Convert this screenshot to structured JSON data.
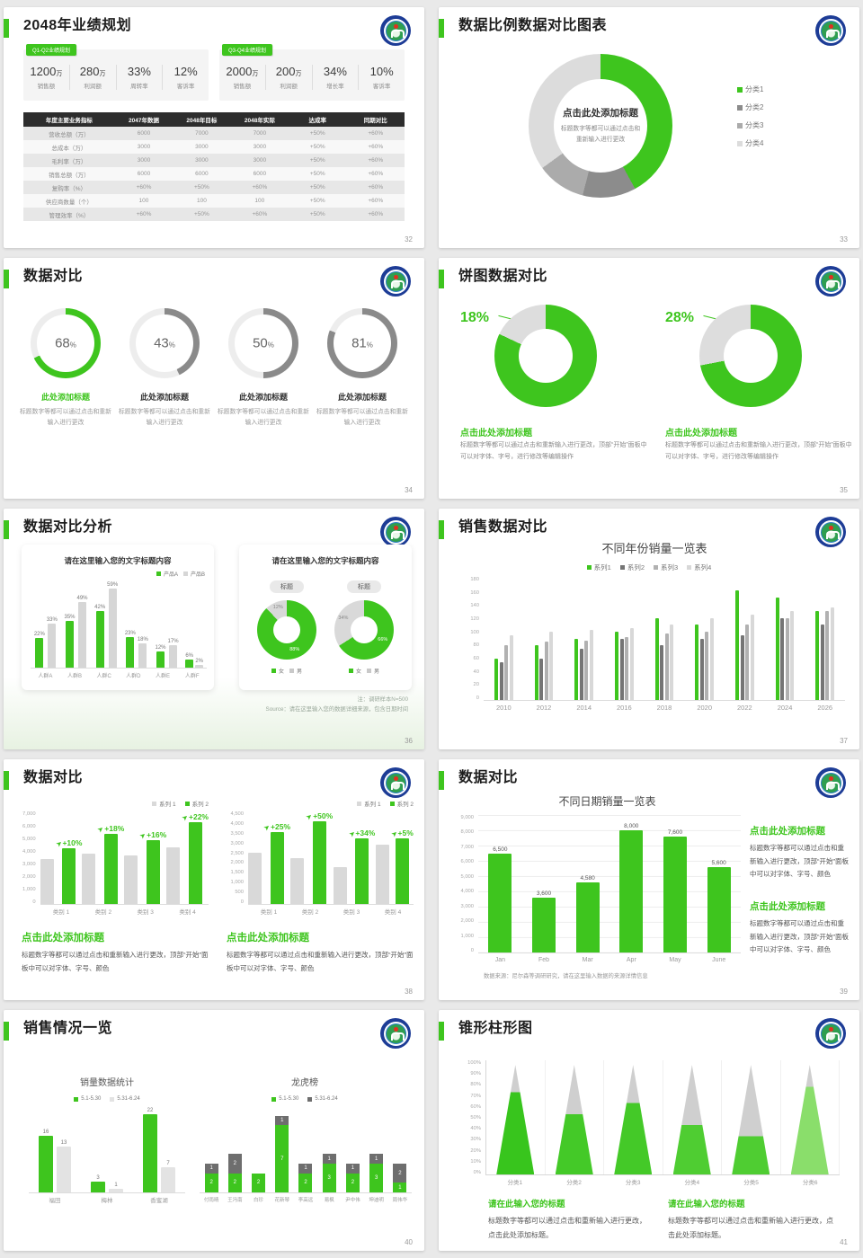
{
  "accent_color": "#3EC51E",
  "slides": {
    "s32": {
      "title": "2048年业绩规划",
      "page": "32",
      "panels": [
        {
          "badge": "Q1-Q2业绩规划",
          "stats": [
            {
              "v": "1200",
              "u": "万",
              "l": "销售额"
            },
            {
              "v": "280",
              "u": "万",
              "l": "利润额"
            },
            {
              "v": "33%",
              "u": "",
              "l": "周转率"
            },
            {
              "v": "12%",
              "u": "",
              "l": "客诉率"
            }
          ]
        },
        {
          "badge": "Q3-Q4业绩规划",
          "stats": [
            {
              "v": "2000",
              "u": "万",
              "l": "销售额"
            },
            {
              "v": "200",
              "u": "万",
              "l": "利润额"
            },
            {
              "v": "34%",
              "u": "",
              "l": "增长率"
            },
            {
              "v": "10%",
              "u": "",
              "l": "客诉率"
            }
          ]
        }
      ],
      "table": {
        "headers": [
          "年度主要业务指标",
          "2047年数据",
          "2048年目标",
          "2048年实际",
          "达成率",
          "同期对比"
        ],
        "rows": [
          [
            "营收总额（万）",
            "6000",
            "7000",
            "7000",
            "+50%",
            "+60%"
          ],
          [
            "总成本（万）",
            "3000",
            "3000",
            "3000",
            "+50%",
            "+60%"
          ],
          [
            "毛利率（万）",
            "3000",
            "3000",
            "3000",
            "+50%",
            "+60%"
          ],
          [
            "销售总额（万）",
            "6000",
            "6000",
            "6000",
            "+50%",
            "+60%"
          ],
          [
            "复购率（%）",
            "+60%",
            "+50%",
            "+60%",
            "+50%",
            "+60%"
          ],
          [
            "供应商数量（个）",
            "100",
            "100",
            "100",
            "+50%",
            "+60%"
          ],
          [
            "管理效率（%）",
            "+60%",
            "+50%",
            "+60%",
            "+50%",
            "+60%"
          ]
        ]
      }
    },
    "s33": {
      "title": "数据比例数据对比图表",
      "page": "33",
      "center": {
        "heading": "点击此处添加标题",
        "sub": "标题数字等都可以通过点击和重新输入进行更改"
      },
      "donut": {
        "type": "pie",
        "segs": [
          {
            "label": "分类1",
            "pct": 42,
            "color": "#3EC51E"
          },
          {
            "label": "分类2",
            "pct": 12,
            "color": "#8c8c8c"
          },
          {
            "label": "分类3",
            "pct": 11,
            "color": "#ababab"
          },
          {
            "label": "分类4",
            "pct": 35,
            "color": "#dcdcdc"
          }
        ]
      }
    },
    "s34": {
      "title": "数据对比",
      "page": "34",
      "items": [
        {
          "pct": 68,
          "color": "#3EC51E",
          "hcolor": "#3EC51E",
          "heading": "此处添加标题",
          "body": "标题数字等都可以通过点击和重新输入进行更改"
        },
        {
          "pct": 43,
          "color": "#8a8a8a",
          "hcolor": "#333333",
          "heading": "此处添加标题",
          "body": "标题数字等都可以通过点击和重新输入进行更改"
        },
        {
          "pct": 50,
          "color": "#8a8a8a",
          "hcolor": "#333333",
          "heading": "此处添加标题",
          "body": "标题数字等都可以通过点击和重新输入进行更改"
        },
        {
          "pct": 81,
          "color": "#8a8a8a",
          "hcolor": "#333333",
          "heading": "此处添加标题",
          "body": "标题数字等都可以通过点击和重新输入进行更改"
        }
      ]
    },
    "s35": {
      "title": "饼图数据对比",
      "page": "35",
      "items": [
        {
          "pct_label": "18%",
          "green": 82,
          "gray": 18,
          "heading": "点击此处添加标题",
          "body": "标题数字等都可以通过点击和重新输入进行更改，顶部“开始”面板中可以对字体、字号，进行修改等编辑操作"
        },
        {
          "pct_label": "28%",
          "green": 72,
          "gray": 28,
          "heading": "点击此处添加标题",
          "body": "标题数字等都可以通过点击和重新输入进行更改，顶部“开始”面板中可以对字体、字号，进行修改等编辑操作"
        }
      ]
    },
    "s36": {
      "title": "数据对比分析",
      "page": "36",
      "left": {
        "panel_title": "请在这里输入您的文字标题内容",
        "type": "bar",
        "legend": [
          {
            "label": "产品A",
            "color": "#3EC51E"
          },
          {
            "label": "产品B",
            "color": "#d6d6d6"
          }
        ],
        "categories": [
          "人群A",
          "人群B",
          "人群C",
          "人群D",
          "人群E",
          "人群F"
        ],
        "series": [
          {
            "name": "产品A",
            "values": [
              22,
              35,
              42,
              23,
              12,
              6
            ],
            "labels": [
              "22%",
              "35%",
              "42%",
              "23%",
              "12%",
              "6%"
            ]
          },
          {
            "name": "产品B",
            "values": [
              33,
              49,
              59,
              18,
              17,
              2
            ],
            "labels": [
              "33%",
              "49%",
              "59%",
              "18%",
              "17%",
              "2%"
            ]
          }
        ],
        "ymax": 65
      },
      "right": {
        "panel_title": "请在这里输入您的文字标题内容",
        "donuts": [
          {
            "badge": "标题",
            "type": "pie",
            "segs": [
              {
                "label": "88%",
                "pct": 88,
                "color": "#3EC51E",
                "lc": "#ffffff",
                "r": 36
              },
              {
                "label": "12%",
                "pct": 12,
                "color": "#d9d9d9",
                "lc": "#888888",
                "r": 40
              }
            ],
            "legend": [
              {
                "label": "女",
                "color": "#3EC51E"
              },
              {
                "label": "男",
                "color": "#c9c9c9"
              }
            ]
          },
          {
            "badge": "标题",
            "type": "pie",
            "segs": [
              {
                "label": "66%",
                "pct": 66,
                "color": "#3EC51E",
                "lc": "#ffffff",
                "r": 36
              },
              {
                "label": "34%",
                "pct": 34,
                "color": "#d9d9d9",
                "lc": "#888888",
                "r": 40
              }
            ],
            "legend": [
              {
                "label": "女",
                "color": "#3EC51E"
              },
              {
                "label": "男",
                "color": "#c9c9c9"
              }
            ]
          }
        ]
      },
      "note1": "注：调研样本N=500",
      "note2": "Source：请在这里输入您的数据详细来源，包含日期时间"
    },
    "s37": {
      "title": "销售数据对比",
      "page": "37",
      "chart_title": "不同年份销量一览表",
      "type": "bar",
      "legend": [
        {
          "label": "系列1",
          "color": "#3EC51E"
        },
        {
          "label": "系列2",
          "color": "#757575"
        },
        {
          "label": "系列3",
          "color": "#b1b1b1"
        },
        {
          "label": "系列4",
          "color": "#d8d8d8"
        }
      ],
      "yticks": [
        "180",
        "160",
        "140",
        "120",
        "100",
        "80",
        "60",
        "40",
        "20",
        "0"
      ],
      "ymax": 180,
      "categories": [
        "2010",
        "2012",
        "2014",
        "2016",
        "2018",
        "2020",
        "2022",
        "2024",
        "2026"
      ],
      "series": [
        {
          "name": "系列1",
          "values": [
            60,
            80,
            90,
            100,
            120,
            110,
            160,
            150,
            130
          ]
        },
        {
          "name": "系列2",
          "values": [
            55,
            60,
            75,
            90,
            80,
            90,
            95,
            120,
            110
          ]
        },
        {
          "name": "系列3",
          "values": [
            80,
            85,
            87,
            92,
            97,
            100,
            110,
            120,
            130
          ]
        },
        {
          "name": "系列4",
          "values": [
            95,
            100,
            102,
            105,
            110,
            120,
            125,
            130,
            135
          ]
        }
      ]
    },
    "s38": {
      "title": "数据对比",
      "page": "38",
      "charts": [
        {
          "type": "bar",
          "legend": [
            {
              "label": "系列 1",
              "color": "#d9d9d9"
            },
            {
              "label": "系列 2",
              "color": "#3EC51E"
            }
          ],
          "yticks": [
            "7,000",
            "6,000",
            "5,000",
            "4,000",
            "3,000",
            "2,000",
            "1,000",
            "0"
          ],
          "ymax": 7000,
          "categories": [
            "类别 1",
            "类别 2",
            "类别 3",
            "类别 4"
          ],
          "gray": [
            3400,
            3800,
            3650,
            4300
          ],
          "green": [
            4200,
            5300,
            4800,
            6200
          ],
          "labels": [
            "+10%",
            "+18%",
            "+16%",
            "+22%"
          ]
        },
        {
          "type": "bar",
          "legend": [
            {
              "label": "系列 1",
              "color": "#d9d9d9"
            },
            {
              "label": "系列 2",
              "color": "#3EC51E"
            }
          ],
          "yticks": [
            "4,500",
            "4,000",
            "3,500",
            "3,000",
            "2,500",
            "2,000",
            "1,500",
            "1,000",
            "500",
            "0"
          ],
          "ymax": 4500,
          "categories": [
            "类别 1",
            "类别 2",
            "类别 3",
            "类别 4"
          ],
          "gray": [
            2500,
            2250,
            1800,
            2900
          ],
          "green": [
            3500,
            4200,
            3200,
            3200
          ],
          "labels": [
            "+25%",
            "+50%",
            "+34%",
            "+5%"
          ]
        }
      ],
      "blocks": [
        {
          "heading": "点击此处添加标题",
          "body": "标题数字等都可以通过点击和重新输入进行更改，顶部“开始”面板中可以对字体、字号、颜色"
        },
        {
          "heading": "点击此处添加标题",
          "body": "标题数字等都可以通过点击和重新输入进行更改，顶部“开始”面板中可以对字体、字号、颜色"
        }
      ]
    },
    "s39": {
      "title": "数据对比",
      "page": "39",
      "chart_title": "不同日期销量一览表",
      "type": "bar",
      "yticks": [
        "9,000",
        "8,000",
        "7,000",
        "6,000",
        "5,000",
        "4,000",
        "3,000",
        "2,000",
        "1,000",
        "0"
      ],
      "ymax": 9000,
      "categories": [
        "Jan",
        "Feb",
        "Mar",
        "Apr",
        "May",
        "June"
      ],
      "values": [
        6500,
        3600,
        4580,
        8000,
        7600,
        5600
      ],
      "labels": [
        "6,500",
        "3,600",
        "4,580",
        "8,000",
        "7,600",
        "5,600"
      ],
      "footnote": "数据来源：尼尔森等调研研究，请在这里输入数据的来源详情信息",
      "blocks": [
        {
          "heading": "点击此处添加标题",
          "body": "标题数字等都可以通过点击和重新输入进行更改，顶部“开始”面板中可以对字体、字号、颜色"
        },
        {
          "heading": "点击此处添加标题",
          "body": "标题数字等都可以通过点击和重新输入进行更改，顶部“开始”面板中可以对字体、字号、颜色"
        }
      ]
    },
    "s40": {
      "title": "销售情况一览",
      "page": "40",
      "left": {
        "chart_title": "销量数据统计",
        "type": "bar",
        "legend": [
          {
            "label": "5.1-5.30",
            "color": "#3EC51E"
          },
          {
            "label": "5.31-6.24",
            "color": "#e3e3e3"
          }
        ],
        "categories": [
          "福田",
          "梅林",
          "香蜜湖"
        ],
        "ymax": 24,
        "series": [
          {
            "name": "5.1-5.30",
            "values": [
              16,
              3,
              22
            ],
            "labels": [
              "16",
              "3",
              "22"
            ]
          },
          {
            "name": "5.31-6.24",
            "values": [
              13,
              1,
              7
            ],
            "labels": [
              "13",
              "1",
              "7"
            ]
          }
        ]
      },
      "right": {
        "chart_title": "龙虎榜",
        "type": "stacked-bar",
        "legend": [
          {
            "label": "5.1-5.30",
            "color": "#3EC51E"
          },
          {
            "label": "5.31-6.24",
            "color": "#6e6e6e"
          }
        ],
        "categories": [
          "付雨晴",
          "王冯南",
          "白珍",
          "花新琴",
          "李高远",
          "易枫",
          "尹中伟",
          "坤迪明",
          "周伟华"
        ],
        "ymax": 9,
        "green": [
          2,
          2,
          2,
          7,
          2,
          3,
          2,
          3,
          1
        ],
        "gray": [
          1,
          2,
          0,
          1,
          1,
          1,
          1,
          1,
          2
        ]
      }
    },
    "s41": {
      "title": "锥形柱形图",
      "page": "41",
      "type": "cone",
      "yticks": [
        "100%",
        "90%",
        "80%",
        "70%",
        "60%",
        "50%",
        "40%",
        "30%",
        "20%",
        "10%",
        "0%"
      ],
      "categories": [
        "分类1",
        "分类2",
        "分类3",
        "分类4",
        "分类5",
        "分类6"
      ],
      "values": [
        75,
        55,
        65,
        45,
        35,
        80
      ],
      "cone_colors": [
        "#38C51D",
        "#44C928",
        "#44C928",
        "#4FCD32",
        "#4FCD32",
        "#8ADE6B"
      ],
      "tip_color": "#cfcfcf",
      "blocks": [
        {
          "heading": "请在此输入您的标题",
          "body": "标题数字等都可以通过点击和重新输入进行更改，点击此处添加标题。"
        },
        {
          "heading": "请在此输入您的标题",
          "body": "标题数字等都可以通过点击和重新输入进行更改，点击此处添加标题。"
        }
      ]
    }
  }
}
